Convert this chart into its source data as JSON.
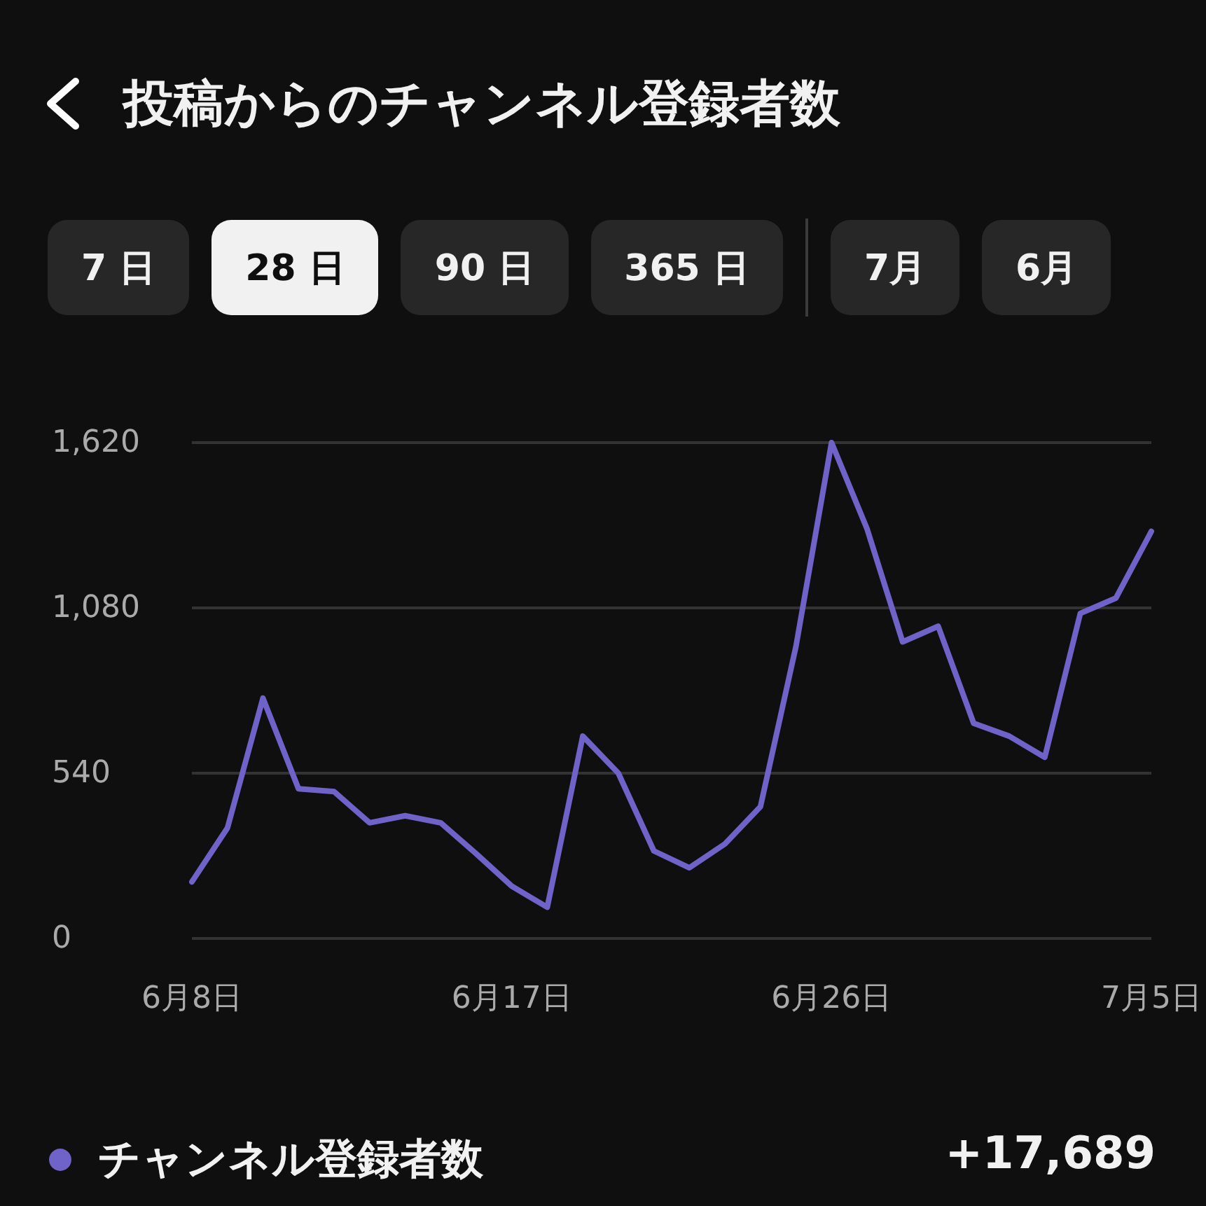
{
  "chart_data": {
    "type": "line",
    "title": "投稿からのチャンネル登録者数",
    "categories": [
      "6月8日",
      null,
      null,
      null,
      null,
      null,
      null,
      null,
      null,
      "6月17日",
      null,
      null,
      null,
      null,
      null,
      null,
      null,
      null,
      "6月26日",
      null,
      null,
      null,
      null,
      null,
      null,
      null,
      null,
      "7月5日"
    ],
    "series": [
      {
        "name": "チャンネル登録者数",
        "color": "#6f63c9",
        "values": [
          185,
          361,
          785,
          489,
          480,
          378,
          401,
          378,
          277,
          171,
          102,
          661,
          540,
          286,
          231,
          309,
          431,
          955,
          1620,
          1338,
          969,
          1020,
          703,
          661,
          592,
          1062,
          1112,
          1330
        ]
      }
    ],
    "ylim": [
      0,
      1620
    ],
    "yticks": [
      0,
      {
        "value": 540,
        "label": "540"
      },
      {
        "value": 1080,
        "label": "1,080"
      },
      {
        "value": 1620,
        "label": "1,620"
      }
    ],
    "grid": "y",
    "legend": "bottom left",
    "marker": "none",
    "line_style": "solid",
    "annotations": [
      "7 日",
      "28 日",
      "90 日",
      "365 日",
      "7月",
      "6月",
      "+17,689"
    ]
  }
}
